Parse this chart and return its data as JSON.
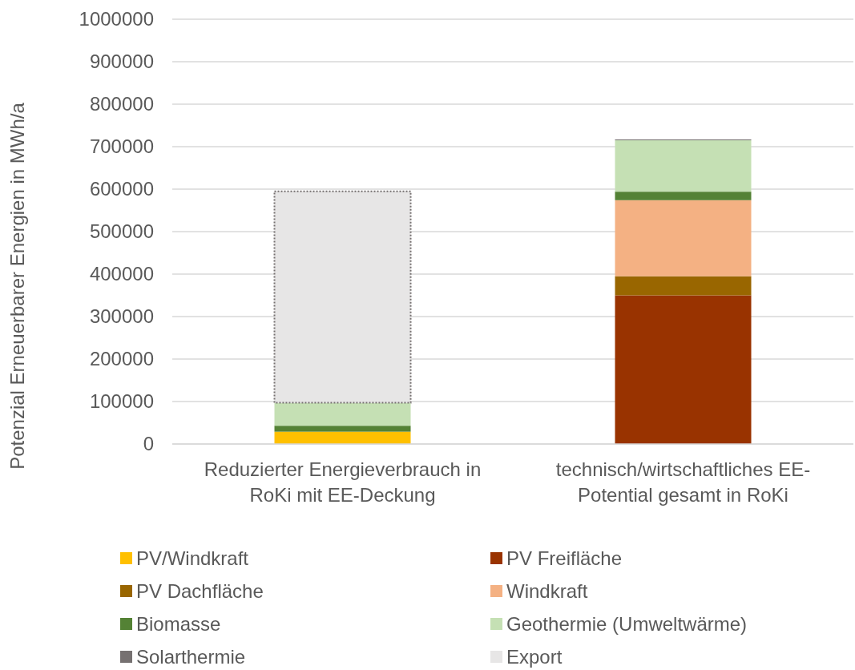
{
  "chart_data": {
    "type": "bar",
    "stacked": true,
    "ylabel": "Potenzial Erneuerbarer Energien in MWh/a",
    "categories": [
      "Reduzierter Energieverbrauch in RoKi mit EE-Deckung",
      "technisch/wirtschaftliches EE-Potential gesamt in RoKi"
    ],
    "series": [
      {
        "name": "PV/Windkraft",
        "color": "#ffc000",
        "values": [
          29000,
          null
        ]
      },
      {
        "name": "PV Freifläche",
        "color": "#993300",
        "values": [
          null,
          350000
        ]
      },
      {
        "name": "PV Dachfläche",
        "color": "#996600",
        "values": [
          null,
          45000
        ]
      },
      {
        "name": "Windkraft",
        "color": "#f4b183",
        "values": [
          null,
          179000
        ]
      },
      {
        "name": "Biomasse",
        "color": "#548235",
        "values": [
          14000,
          20000
        ]
      },
      {
        "name": "Geothermie (Umweltwärme)",
        "color": "#c5e0b4",
        "values": [
          54000,
          121000
        ]
      },
      {
        "name": "Solarthermie",
        "color": "#767171",
        "values": [
          null,
          2000
        ]
      },
      {
        "name": "Export",
        "color": "#e7e6e6",
        "values": [
          498000,
          null
        ],
        "line_style": "dotted"
      }
    ],
    "ylim": [
      0,
      1000000
    ],
    "yticks": [
      0,
      100000,
      200000,
      300000,
      400000,
      500000,
      600000,
      700000,
      800000,
      900000,
      1000000
    ],
    "grid": "y",
    "legend": "bottom"
  }
}
